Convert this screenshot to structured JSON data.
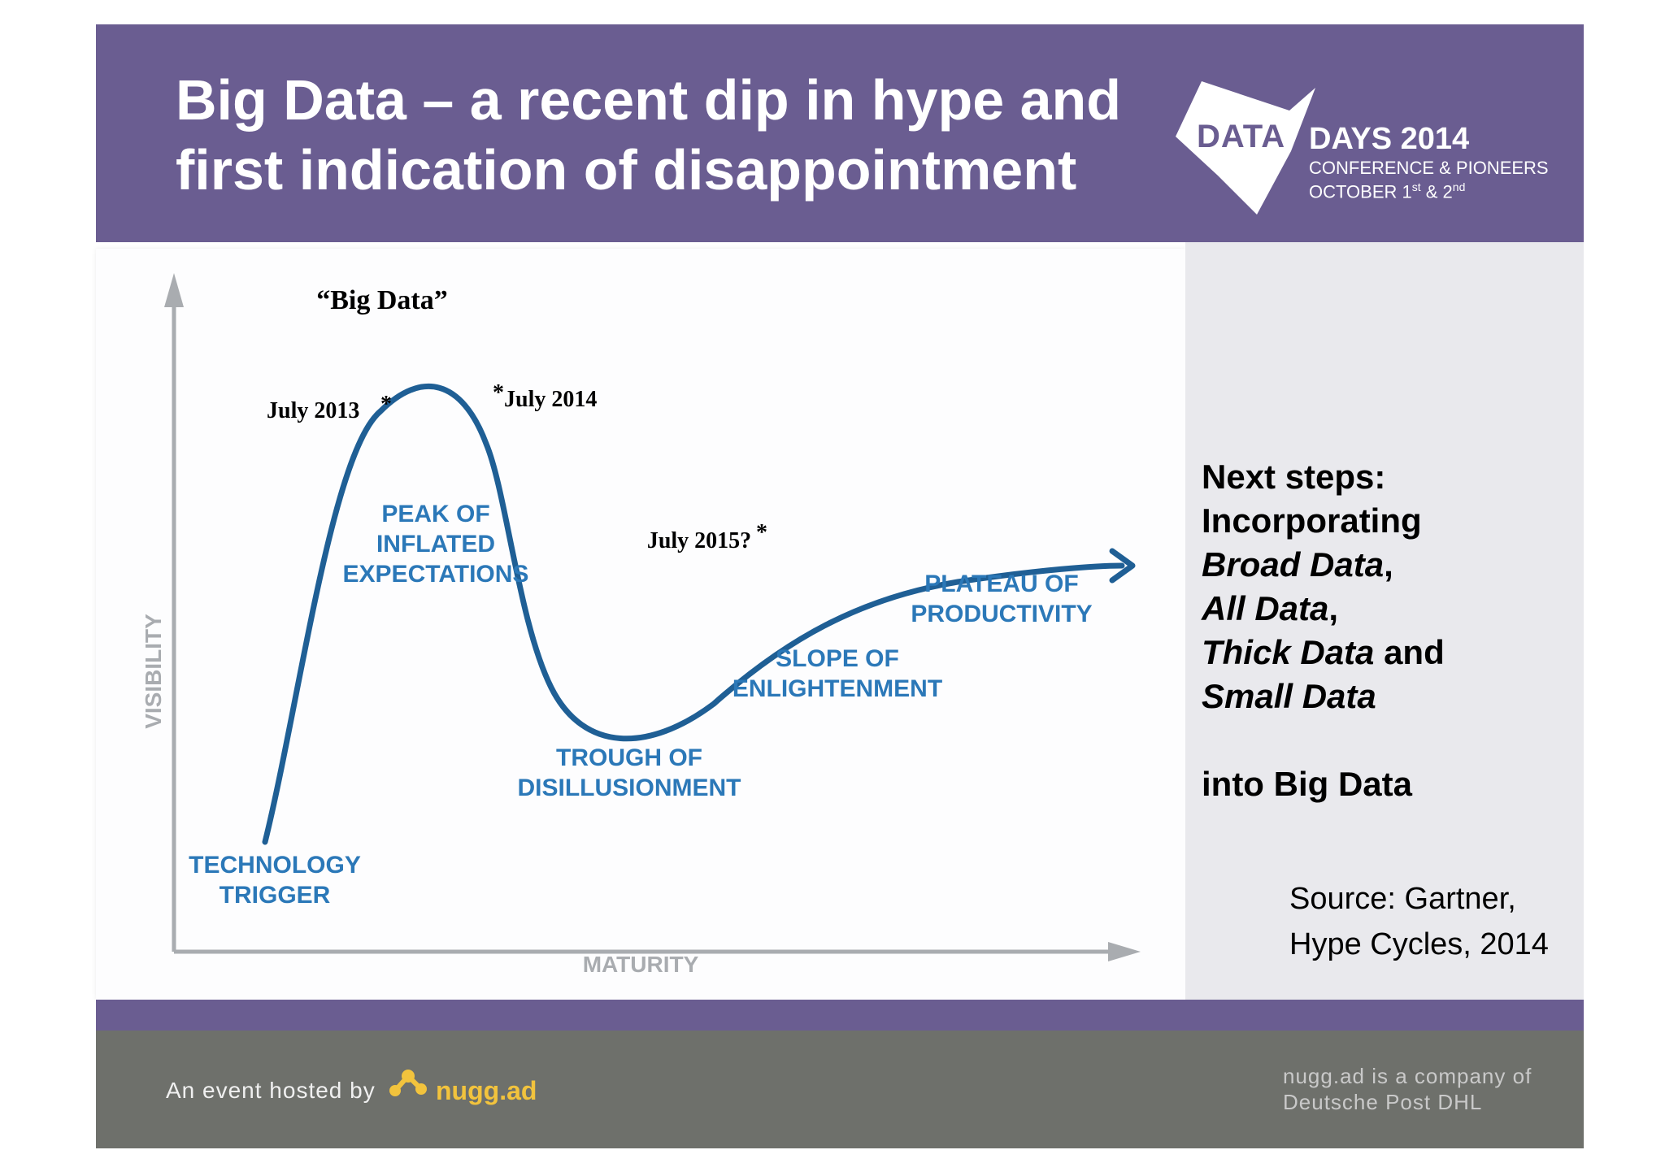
{
  "header": {
    "title_line1": "Big Data – a recent dip in hype and",
    "title_line2": "first indication of disappointment",
    "logo": {
      "word": "DATA",
      "days": "DAYS 2014",
      "subtitle": "CONFERENCE & PIONEERS",
      "date_prefix": "OCTOBER 1",
      "date_sup1": "st",
      "date_mid": " & 2",
      "date_sup2": "nd"
    }
  },
  "diagram": {
    "y_axis_label": "VISIBILITY",
    "x_axis_label": "MATURITY",
    "big_data_label": "“Big Data”",
    "markers": {
      "july_2013": "July 2013",
      "july_2014": "July 2014",
      "july_2015": "July 2015?",
      "asterisk": "*"
    },
    "phases": {
      "trigger": [
        "TECHNOLOGY",
        "TRIGGER"
      ],
      "peak": [
        "PEAK OF",
        "INFLATED",
        "EXPECTATIONS"
      ],
      "trough": [
        "TROUGH OF",
        "DISILLUSIONMENT"
      ],
      "slope": [
        "SLOPE OF",
        "ENLIGHTENMENT"
      ],
      "plateau": [
        "PLATEAU OF",
        "PRODUCTIVITY"
      ]
    }
  },
  "side": {
    "next_steps": "Next steps:",
    "incorporating": "Incorporating",
    "broad_data": "Broad Data",
    "all_data": "All Data",
    "thick_data": "Thick Data",
    "and_word": " and",
    "small_data": "Small Data",
    "comma": ",",
    "into_big_data": "into Big Data",
    "source_line1": "Source: Gartner,",
    "source_line2": "Hype Cycles, 2014"
  },
  "footer": {
    "hosted_by": "An event hosted by",
    "nugg": "nugg.ad",
    "company_line1": "nugg.ad is a company of",
    "company_line2": "Deutsche Post DHL"
  },
  "colors": {
    "header_purple": "#6a5d91",
    "curve_blue": "#1f5f95",
    "phase_blue": "#2b78b8",
    "axis_gray": "#a9acb0",
    "footer_gray": "#6e706b",
    "nugg_yellow": "#f2c33d"
  }
}
